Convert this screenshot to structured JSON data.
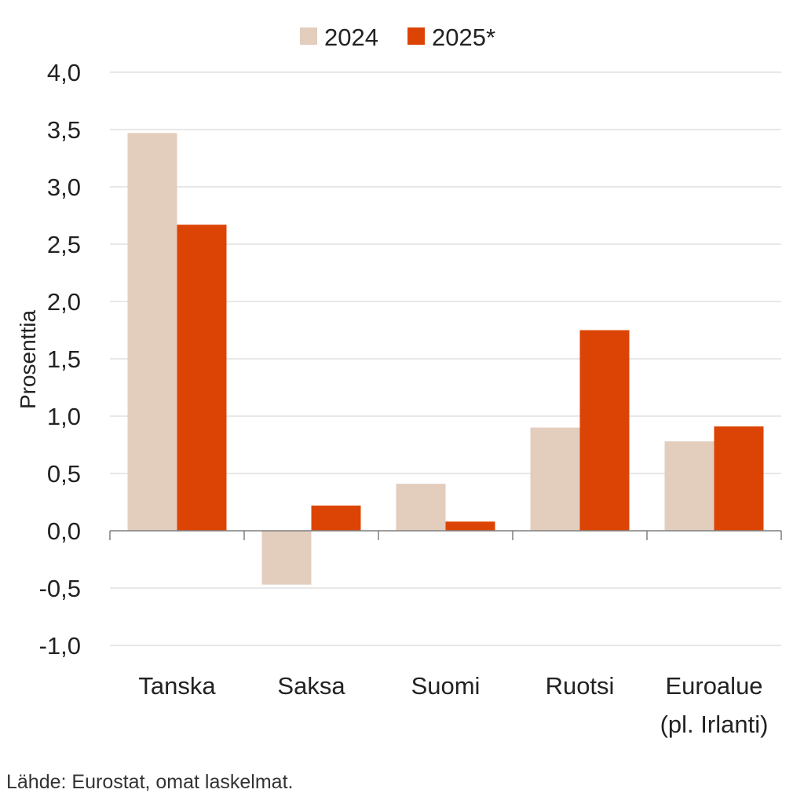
{
  "chart_data": {
    "type": "bar",
    "title": "",
    "xlabel": "",
    "ylabel": "Prosenttia",
    "ylim": [
      -1.0,
      4.0
    ],
    "yticks": [
      -1.0,
      -0.5,
      0.0,
      0.5,
      1.0,
      1.5,
      2.0,
      2.5,
      3.0,
      3.5,
      4.0
    ],
    "ytick_labels": [
      "-1,0",
      "-0,5",
      "0,0",
      "0,5",
      "1,0",
      "1,5",
      "2,0",
      "2,5",
      "3,0",
      "3,5",
      "4,0"
    ],
    "grid": true,
    "legend_position": "top-center",
    "categories": [
      [
        "Tanska"
      ],
      [
        "Saksa"
      ],
      [
        "Suomi"
      ],
      [
        "Ruotsi"
      ],
      [
        "Euroalue",
        "(pl. Irlanti)"
      ]
    ],
    "series": [
      {
        "name": "2024",
        "color": "#e3cdbd",
        "values": [
          3.47,
          -0.47,
          0.41,
          0.9,
          0.78
        ]
      },
      {
        "name": "2025*",
        "color": "#dc4405",
        "values": [
          2.67,
          0.22,
          0.08,
          1.75,
          0.91
        ]
      }
    ]
  },
  "source": "Lähde: Eurostat, omat laskelmat."
}
